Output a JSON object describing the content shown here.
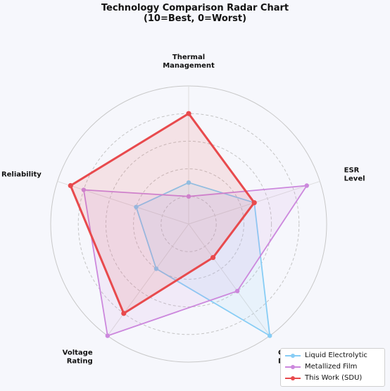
{
  "chart_data": {
    "type": "radar",
    "title": "Technology Comparison Radar Chart",
    "subtitle": "(10=Best, 0=Worst)",
    "axes": [
      {
        "label": [
          "ESR",
          "Level"
        ]
      },
      {
        "label": [
          "Capacitance",
          "Density"
        ]
      },
      {
        "label": [
          "Voltage",
          "Rating"
        ]
      },
      {
        "label": [
          "Reliability"
        ]
      },
      {
        "label": [
          "Thermal",
          "Management"
        ]
      }
    ],
    "range": [
      0,
      10
    ],
    "grid": true,
    "legend_position": "bottom-right",
    "series": [
      {
        "name": "Liquid Electrolytic",
        "color": "#87cdf5",
        "fill": "#87cdf5",
        "values": [
          5,
          10,
          4,
          4,
          3
        ]
      },
      {
        "name": "Metallized Film",
        "color": "#cc88dd",
        "fill": "#cc88dd",
        "values": [
          9,
          6,
          10,
          8,
          2
        ]
      },
      {
        "name": "This Work (SDU)",
        "color": "#e84a4d",
        "fill": "#e84a4d",
        "values": [
          5,
          3,
          8,
          9,
          8
        ]
      }
    ]
  }
}
